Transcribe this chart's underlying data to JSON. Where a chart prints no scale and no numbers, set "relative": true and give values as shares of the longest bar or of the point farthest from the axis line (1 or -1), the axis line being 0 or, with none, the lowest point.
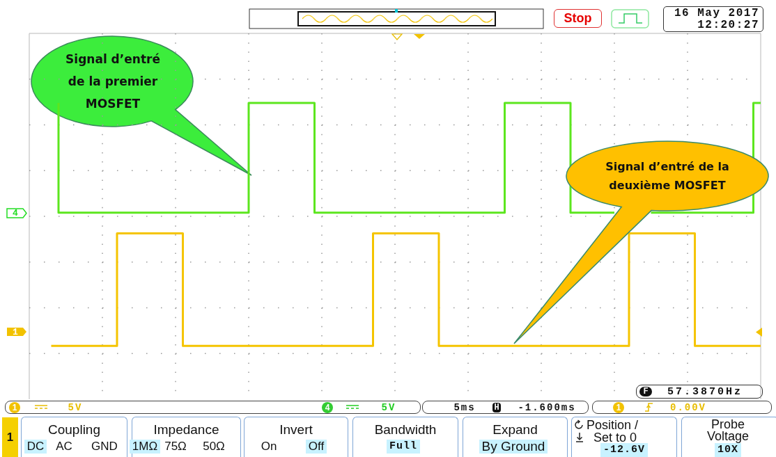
{
  "chart_data": {
    "type": "step",
    "relative": true,
    "grid": true,
    "categories": [
      null,
      null,
      null,
      null,
      null,
      null,
      null,
      null,
      null,
      null,
      null,
      null,
      null,
      null,
      null,
      null,
      null,
      null,
      null,
      null,
      null,
      null,
      null,
      null,
      null,
      null,
      null,
      null,
      null,
      null,
      null,
      null,
      null,
      null,
      null,
      null,
      null,
      null,
      null,
      null,
      null,
      null,
      null,
      null,
      null,
      null,
      null,
      null,
      null,
      null,
      null,
      null,
      null,
      null,
      null,
      null,
      null,
      null,
      null,
      null,
      null,
      null,
      null,
      null,
      null,
      null,
      null,
      null,
      null,
      null,
      null,
      null,
      null,
      null,
      null,
      null,
      null,
      null,
      null,
      null,
      null,
      null,
      null,
      null,
      null,
      null,
      null,
      null,
      null,
      null,
      null,
      null,
      null,
      null,
      null,
      null,
      null,
      null,
      null,
      null,
      null
    ],
    "series": [
      {
        "color": "#5ce61e",
        "values": [
          null,
          null,
          null,
          null,
          1,
          0.63,
          0.63,
          0.63,
          0.63,
          0.63,
          0.63,
          0.63,
          0.63,
          0.63,
          0.63,
          0.63,
          0.63,
          0.63,
          0.63,
          0.63,
          0.63,
          0.63,
          0.63,
          0.63,
          0.63,
          0.63,
          0.63,
          0.63,
          0.63,
          0.63,
          0.63,
          1,
          1,
          1,
          1,
          1,
          1,
          1,
          1,
          1,
          0.63,
          0.63,
          0.63,
          0.63,
          0.63,
          0.63,
          0.63,
          0.63,
          0.63,
          0.63,
          0.63,
          0.63,
          0.63,
          0.63,
          0.63,
          0.63,
          0.63,
          0.63,
          0.63,
          0.63,
          0.63,
          0.63,
          0.63,
          0.63,
          0.63,
          0.63,
          1,
          1,
          1,
          1,
          1,
          1,
          1,
          1,
          1,
          0.63,
          0.63,
          0.63,
          0.63,
          0.63,
          0.63,
          null,
          null,
          null,
          null,
          0.63,
          0.63,
          0.63,
          0.63,
          0.63,
          0.63,
          0.63,
          0.63,
          0.63,
          0.63,
          0.63,
          0.63,
          0.63,
          0.63,
          0.63,
          1
        ]
      },
      {
        "color": "#f5c400",
        "values": [
          null,
          null,
          null,
          0.18,
          0.18,
          0.18,
          0.18,
          0.18,
          0.18,
          0.18,
          0.18,
          0.18,
          0.18,
          0.56,
          0.56,
          0.56,
          0.56,
          0.56,
          0.56,
          0.56,
          0.56,
          0.56,
          0.18,
          0.18,
          0.18,
          0.18,
          0.18,
          0.18,
          0.18,
          0.18,
          0.18,
          0.18,
          0.18,
          0.18,
          0.18,
          0.18,
          0.18,
          0.18,
          0.18,
          0.18,
          0.18,
          0.18,
          0.18,
          0.18,
          0.18,
          0.18,
          0.18,
          0.18,
          0.56,
          0.56,
          0.56,
          0.56,
          0.56,
          0.56,
          0.56,
          0.56,
          0.56,
          0.18,
          0.18,
          0.18,
          0.18,
          0.18,
          0.18,
          0.18,
          0.18,
          0.18,
          0.18,
          0.18,
          0.18,
          0.18,
          0.18,
          0.18,
          0.18,
          0.18,
          0.18,
          0.18,
          0.18,
          0.18,
          0.18,
          0.18,
          0.18,
          0.18,
          0.18,
          0.56,
          0.56,
          0.56,
          0.56,
          0.56,
          0.56,
          0.56,
          0.56,
          0.56,
          0.18,
          0.18,
          0.18,
          0.18,
          0.18,
          0.18,
          0.18,
          0.18,
          0.18
        ]
      }
    ],
    "annotations": [
      "Stop",
      "16 May 2017",
      "12:20:27",
      "Signal d’entré de la premier MOSFET",
      "Signal d’entré de la deuxième MOSFET",
      "4",
      "1",
      "F",
      "57.3870Hz",
      "1",
      "5V",
      "4",
      "5V",
      "5ms",
      "H",
      "-1.600ms",
      "1",
      "0.00V",
      "1",
      "Coupling",
      "DC",
      "AC",
      "GND",
      "Impedance",
      "1MΩ",
      "75Ω",
      "50Ω",
      "Invert",
      "On",
      "Off",
      "Bandwidth",
      "Full",
      "Expand",
      "By Ground",
      "Position /",
      "Set to 0",
      "-12.6V",
      "Probe Voltage",
      "10X"
    ]
  }
}
